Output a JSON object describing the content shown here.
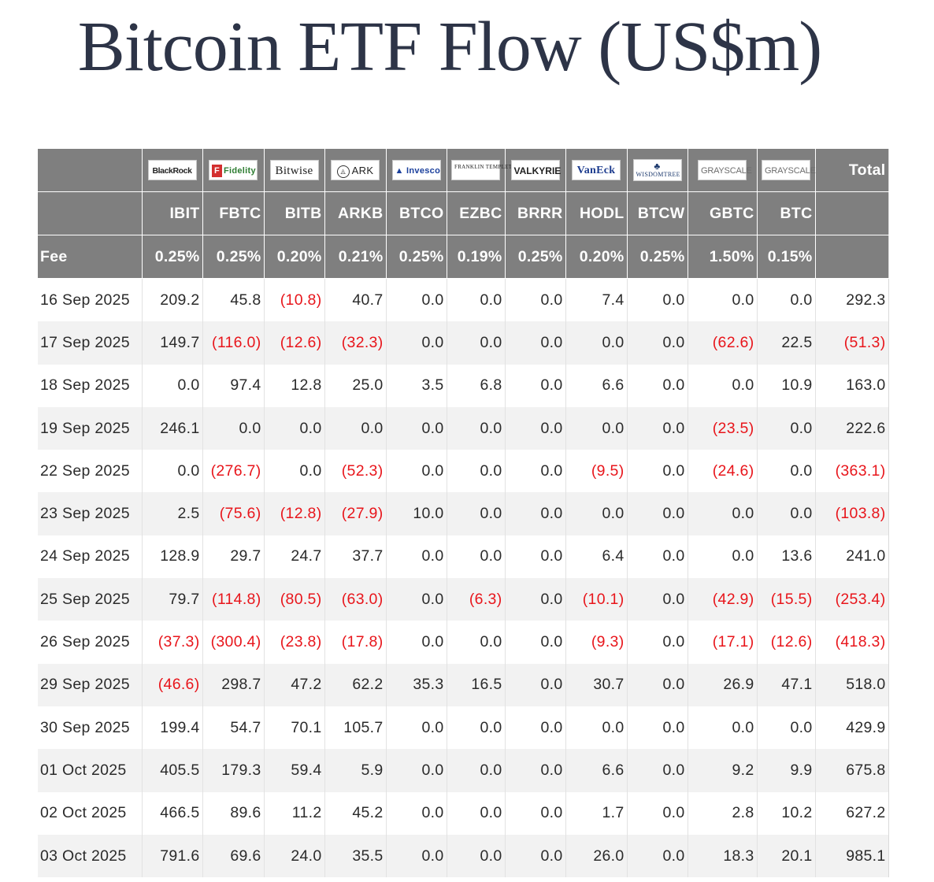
{
  "title": "Bitcoin ETF Flow (US$m)",
  "colors": {
    "header_bg": "#7f7f7f",
    "negative": "#e8151b",
    "row_alt": "#f2f2f2",
    "title": "#2d3447"
  },
  "logos": [
    {
      "icon": "blackrock-logo-icon",
      "text": "BlackRock"
    },
    {
      "icon": "fidelity-logo-icon",
      "text": "Fidelity"
    },
    {
      "icon": "bitwise-logo-icon",
      "text": "Bitwise"
    },
    {
      "icon": "ark-invest-logo-icon",
      "text": "ARK"
    },
    {
      "icon": "invesco-logo-icon",
      "text": "Invesco"
    },
    {
      "icon": "franklin-templeton-logo-icon",
      "text": "FRANKLIN TEMPLETON"
    },
    {
      "icon": "valkyrie-logo-icon",
      "text": "VALKYRIE"
    },
    {
      "icon": "vaneck-logo-icon",
      "text": "VanEck"
    },
    {
      "icon": "wisdomtree-logo-icon",
      "text": "WISDOMTREE"
    },
    {
      "icon": "grayscale-logo-icon",
      "text": "GRAYSCALE"
    },
    {
      "icon": "grayscale-logo-icon",
      "text": "GRAYSCALE"
    }
  ],
  "total_label": "Total",
  "tickers": [
    "IBIT",
    "FBTC",
    "BITB",
    "ARKB",
    "BTCO",
    "EZBC",
    "BRRR",
    "HODL",
    "BTCW",
    "GBTC",
    "BTC"
  ],
  "fee_label": "Fee",
  "fees": [
    "0.25%",
    "0.25%",
    "0.20%",
    "0.21%",
    "0.25%",
    "0.19%",
    "0.25%",
    "0.20%",
    "0.25%",
    "1.50%",
    "0.15%"
  ],
  "rows": [
    {
      "date": "16 Sep 2025",
      "values": [
        "209.2",
        "45.8",
        "(10.8)",
        "40.7",
        "0.0",
        "0.0",
        "0.0",
        "7.4",
        "0.0",
        "0.0",
        "0.0"
      ],
      "total": "292.3"
    },
    {
      "date": "17 Sep 2025",
      "values": [
        "149.7",
        "(116.0)",
        "(12.6)",
        "(32.3)",
        "0.0",
        "0.0",
        "0.0",
        "0.0",
        "0.0",
        "(62.6)",
        "22.5"
      ],
      "total": "(51.3)"
    },
    {
      "date": "18 Sep 2025",
      "values": [
        "0.0",
        "97.4",
        "12.8",
        "25.0",
        "3.5",
        "6.8",
        "0.0",
        "6.6",
        "0.0",
        "0.0",
        "10.9"
      ],
      "total": "163.0"
    },
    {
      "date": "19 Sep 2025",
      "values": [
        "246.1",
        "0.0",
        "0.0",
        "0.0",
        "0.0",
        "0.0",
        "0.0",
        "0.0",
        "0.0",
        "(23.5)",
        "0.0"
      ],
      "total": "222.6"
    },
    {
      "date": "22 Sep 2025",
      "values": [
        "0.0",
        "(276.7)",
        "0.0",
        "(52.3)",
        "0.0",
        "0.0",
        "0.0",
        "(9.5)",
        "0.0",
        "(24.6)",
        "0.0"
      ],
      "total": "(363.1)"
    },
    {
      "date": "23 Sep 2025",
      "values": [
        "2.5",
        "(75.6)",
        "(12.8)",
        "(27.9)",
        "10.0",
        "0.0",
        "0.0",
        "0.0",
        "0.0",
        "0.0",
        "0.0"
      ],
      "total": "(103.8)"
    },
    {
      "date": "24 Sep 2025",
      "values": [
        "128.9",
        "29.7",
        "24.7",
        "37.7",
        "0.0",
        "0.0",
        "0.0",
        "6.4",
        "0.0",
        "0.0",
        "13.6"
      ],
      "total": "241.0"
    },
    {
      "date": "25 Sep 2025",
      "values": [
        "79.7",
        "(114.8)",
        "(80.5)",
        "(63.0)",
        "0.0",
        "(6.3)",
        "0.0",
        "(10.1)",
        "0.0",
        "(42.9)",
        "(15.5)"
      ],
      "total": "(253.4)"
    },
    {
      "date": "26 Sep 2025",
      "values": [
        "(37.3)",
        "(300.4)",
        "(23.8)",
        "(17.8)",
        "0.0",
        "0.0",
        "0.0",
        "(9.3)",
        "0.0",
        "(17.1)",
        "(12.6)"
      ],
      "total": "(418.3)"
    },
    {
      "date": "29 Sep 2025",
      "values": [
        "(46.6)",
        "298.7",
        "47.2",
        "62.2",
        "35.3",
        "16.5",
        "0.0",
        "30.7",
        "0.0",
        "26.9",
        "47.1"
      ],
      "total": "518.0"
    },
    {
      "date": "30 Sep 2025",
      "values": [
        "199.4",
        "54.7",
        "70.1",
        "105.7",
        "0.0",
        "0.0",
        "0.0",
        "0.0",
        "0.0",
        "0.0",
        "0.0"
      ],
      "total": "429.9"
    },
    {
      "date": "01 Oct 2025",
      "values": [
        "405.5",
        "179.3",
        "59.4",
        "5.9",
        "0.0",
        "0.0",
        "0.0",
        "6.6",
        "0.0",
        "9.2",
        "9.9"
      ],
      "total": "675.8"
    },
    {
      "date": "02 Oct 2025",
      "values": [
        "466.5",
        "89.6",
        "11.2",
        "45.2",
        "0.0",
        "0.0",
        "0.0",
        "1.7",
        "0.0",
        "2.8",
        "10.2"
      ],
      "total": "627.2"
    },
    {
      "date": "03 Oct 2025",
      "values": [
        "791.6",
        "69.6",
        "24.0",
        "35.5",
        "0.0",
        "0.0",
        "0.0",
        "26.0",
        "0.0",
        "18.3",
        "20.1"
      ],
      "total": "985.1"
    }
  ]
}
